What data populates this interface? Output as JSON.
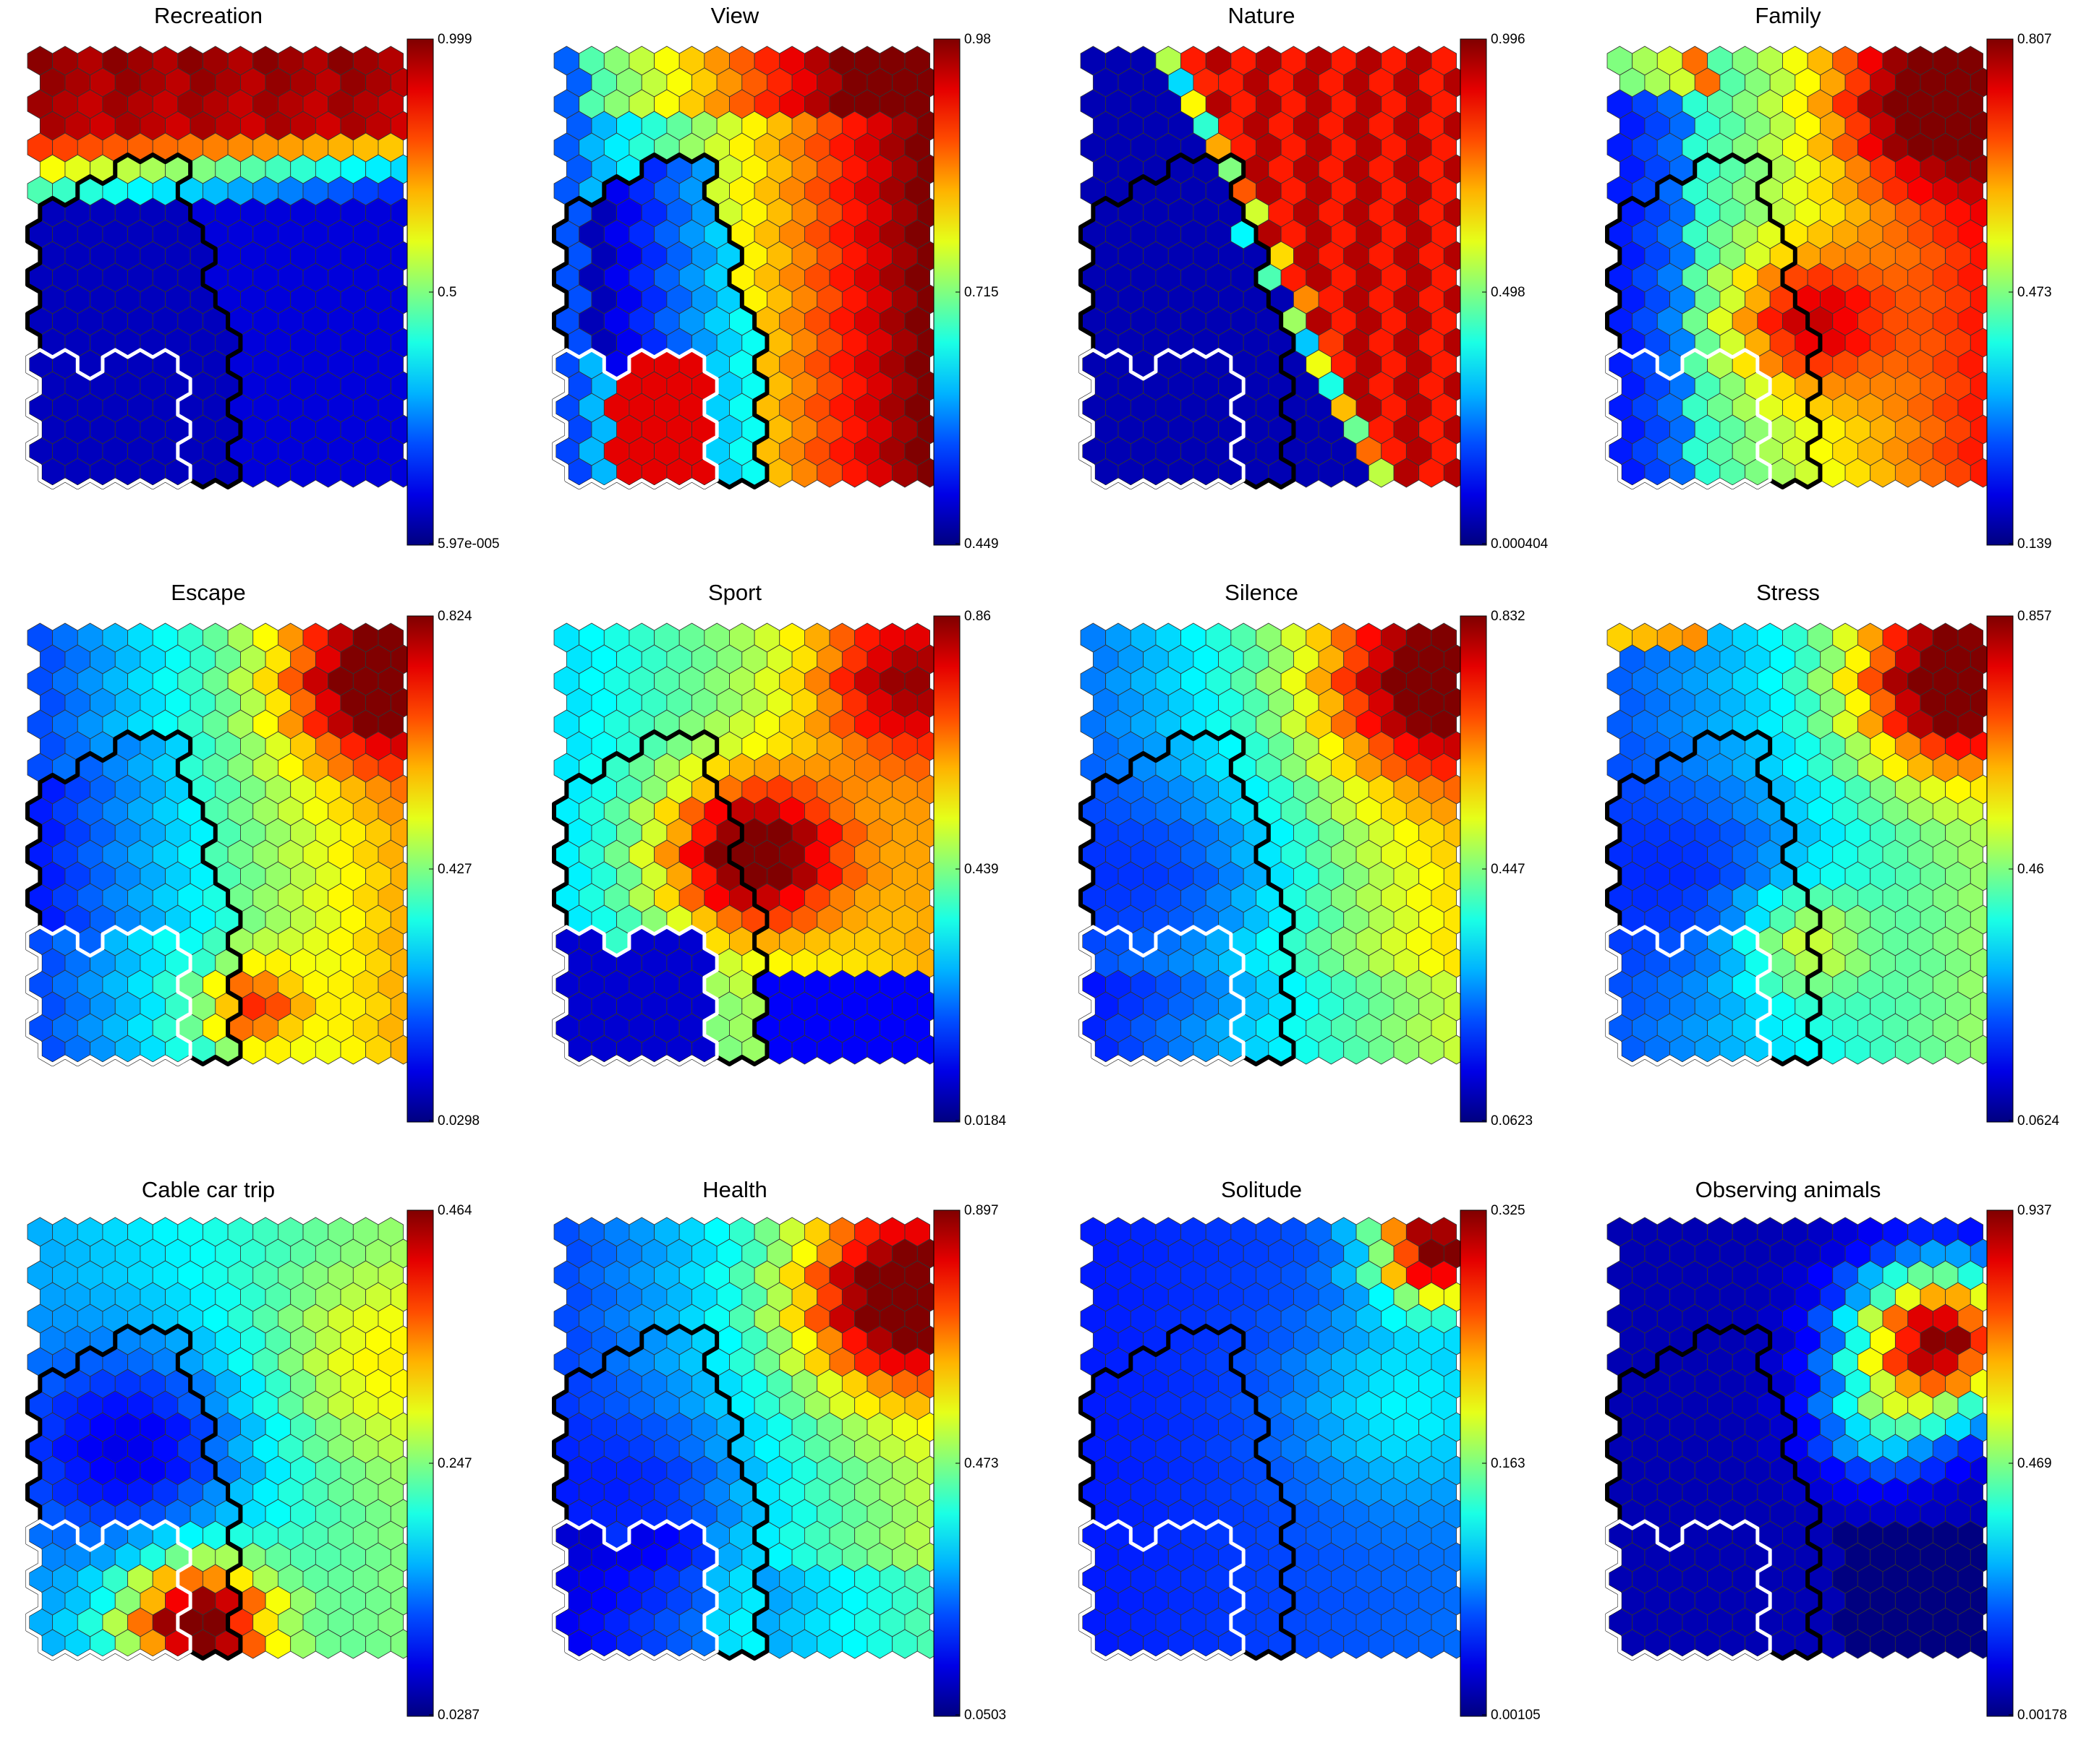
{
  "chart_data": [
    {
      "type": "heatmap",
      "title": "Recreation",
      "colorbar_max": "0.999",
      "colorbar_mid": "0.5",
      "colorbar_min": "5.97e-005",
      "pattern": "recreation"
    },
    {
      "type": "heatmap",
      "title": "View",
      "colorbar_max": "0.98",
      "colorbar_mid": "0.715",
      "colorbar_min": "0.449",
      "pattern": "view"
    },
    {
      "type": "heatmap",
      "title": "Nature",
      "colorbar_max": "0.996",
      "colorbar_mid": "0.498",
      "colorbar_min": "0.000404",
      "pattern": "nature"
    },
    {
      "type": "heatmap",
      "title": "Family",
      "colorbar_max": "0.807",
      "colorbar_mid": "0.473",
      "colorbar_min": "0.139",
      "pattern": "family"
    },
    {
      "type": "heatmap",
      "title": "Escape",
      "colorbar_max": "0.824",
      "colorbar_mid": "0.427",
      "colorbar_min": "0.0298",
      "pattern": "escape"
    },
    {
      "type": "heatmap",
      "title": "Sport",
      "colorbar_max": "0.86",
      "colorbar_mid": "0.439",
      "colorbar_min": "0.0184",
      "pattern": "sport"
    },
    {
      "type": "heatmap",
      "title": "Silence",
      "colorbar_max": "0.832",
      "colorbar_mid": "0.447",
      "colorbar_min": "0.0623",
      "pattern": "silence"
    },
    {
      "type": "heatmap",
      "title": "Stress",
      "colorbar_max": "0.857",
      "colorbar_mid": "0.46",
      "colorbar_min": "0.0624",
      "pattern": "stress"
    },
    {
      "type": "heatmap",
      "title": "Cable car trip",
      "colorbar_max": "0.464",
      "colorbar_mid": "0.247",
      "colorbar_min": "0.0287",
      "pattern": "cablecar"
    },
    {
      "type": "heatmap",
      "title": "Health",
      "colorbar_max": "0.897",
      "colorbar_mid": "0.473",
      "colorbar_min": "0.0503",
      "pattern": "health"
    },
    {
      "type": "heatmap",
      "title": "Solitude",
      "colorbar_max": "0.325",
      "colorbar_mid": "0.163",
      "colorbar_min": "0.00105",
      "pattern": "solitude"
    },
    {
      "type": "heatmap",
      "title": "Observing animals",
      "colorbar_max": "0.937",
      "colorbar_mid": "0.469",
      "colorbar_min": "0.00178",
      "pattern": "animals"
    }
  ],
  "colormap": "jet"
}
